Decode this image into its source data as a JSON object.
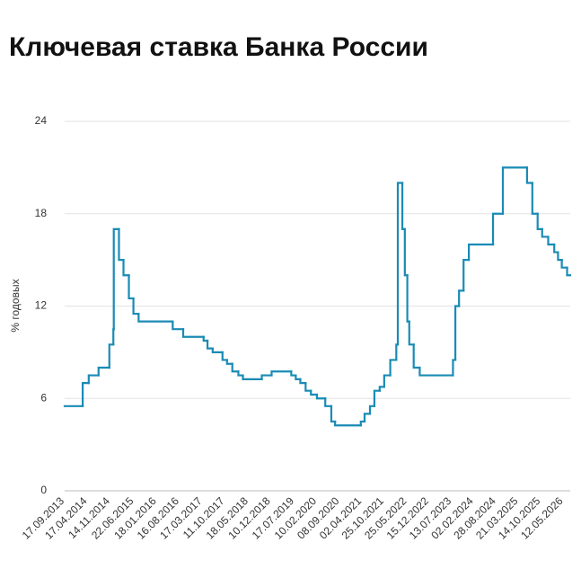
{
  "chart_data": {
    "type": "step",
    "title": "Ключевая ставка Банка России",
    "y_label": "% годовых",
    "color": "#1a8bb5",
    "grid": true,
    "ylim": [
      0,
      24
    ],
    "yticks": [
      0,
      6,
      12,
      18,
      24
    ],
    "xlim": [
      "17.09.2013",
      "14.07.2026"
    ],
    "xticks": [
      "17.09.2013",
      "17.04.2014",
      "14.11.2014",
      "22.06.2015",
      "18.01.2016",
      "16.08.2016",
      "17.03.2017",
      "11.10.2017",
      "18.05.2018",
      "10.12.2018",
      "17.07.2019",
      "10.02.2020",
      "08.09.2020",
      "02.04.2021",
      "25.10.2021",
      "25.05.2022",
      "15.12.2022",
      "13.07.2023",
      "02.02.2024",
      "28.08.2024",
      "21.03.2025",
      "14.10.2025",
      "12.05.2026"
    ],
    "x": [
      "17.09.2013",
      "03.03.2014",
      "28.04.2014",
      "28.07.2014",
      "05.11.2014",
      "12.12.2014",
      "16.12.2014",
      "02.02.2015",
      "16.03.2015",
      "05.05.2015",
      "16.06.2015",
      "03.08.2015",
      "14.06.2016",
      "19.09.2016",
      "27.03.2017",
      "02.05.2017",
      "19.06.2017",
      "18.09.2017",
      "30.10.2017",
      "18.12.2017",
      "12.02.2018",
      "26.03.2018",
      "17.09.2018",
      "17.12.2018",
      "17.06.2019",
      "29.07.2019",
      "09.09.2019",
      "28.10.2019",
      "16.12.2019",
      "10.02.2020",
      "27.04.2020",
      "22.06.2020",
      "27.07.2020",
      "22.03.2021",
      "26.04.2021",
      "15.06.2021",
      "26.07.2021",
      "13.09.2021",
      "25.10.2021",
      "20.12.2021",
      "14.02.2022",
      "28.02.2022",
      "11.04.2022",
      "04.05.2022",
      "27.05.2022",
      "14.06.2022",
      "25.07.2022",
      "19.09.2022",
      "24.07.2023",
      "15.08.2023",
      "18.09.2023",
      "30.10.2023",
      "18.12.2023",
      "29.07.2024",
      "28.10.2024",
      "09.06.2025",
      "28.07.2025",
      "15.09.2025",
      "27.10.2025",
      "22.12.2025",
      "16.02.2026",
      "23.03.2026",
      "27.04.2026",
      "15.06.2026"
    ],
    "values": [
      5.5,
      7,
      7.5,
      8,
      9.5,
      10.5,
      17,
      15,
      14,
      12.5,
      11.5,
      11,
      10.5,
      10,
      9.75,
      9.25,
      9,
      8.5,
      8.25,
      7.75,
      7.5,
      7.25,
      7.5,
      7.75,
      7.5,
      7.25,
      7,
      6.5,
      6.25,
      6,
      5.5,
      4.5,
      4.25,
      4.5,
      5,
      5.5,
      6.5,
      6.75,
      7.5,
      8.5,
      9.5,
      20,
      17,
      14,
      11,
      9.5,
      8,
      7.5,
      8.5,
      12,
      13,
      15,
      16,
      18,
      21,
      20,
      18,
      17,
      16.5,
      16,
      15.5,
      15,
      14.5,
      14
    ]
  }
}
